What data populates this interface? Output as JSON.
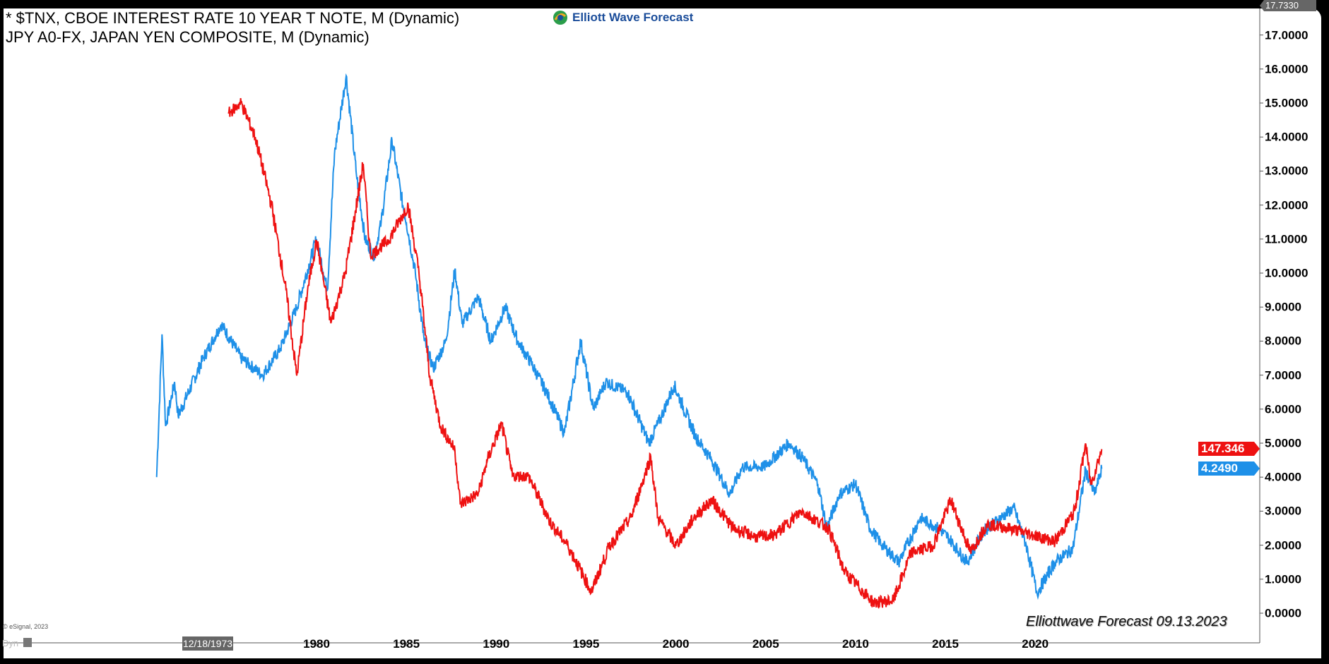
{
  "header": {
    "line1": "* $TNX, CBOE INTEREST RATE 10 YEAR T NOTE, M (Dynamic)",
    "line2": "JPY A0-FX, JAPAN YEN COMPOSITE, M (Dynamic)",
    "logo_text": "Elliott Wave Forecast"
  },
  "watermark": "Elliottwave Forecast  09.13.2023",
  "copyright": "© eSignal, 2023",
  "footer": {
    "dyn_label": "Dyn",
    "cursor_date": "12/18/1973"
  },
  "price_axis": {
    "top_value": "17.7330"
  },
  "chart_data": {
    "type": "line",
    "title": "",
    "xlabel": "",
    "ylabel": "",
    "xlim": [
      1965,
      2040
    ],
    "ylim": [
      -0.9,
      17.8
    ],
    "grid": false,
    "x_ticks": [
      "1980",
      "1985",
      "1990",
      "1995",
      "2000",
      "2005",
      "2010",
      "2015",
      "2020"
    ],
    "y_ticks": [
      "0.0000",
      "1.0000",
      "2.0000",
      "3.0000",
      "4.0000",
      "5.0000",
      "6.0000",
      "7.0000",
      "8.0000",
      "9.0000",
      "10.0000",
      "11.0000",
      "12.0000",
      "13.0000",
      "14.0000",
      "15.0000",
      "16.0000",
      "17.0000"
    ],
    "series": [
      {
        "name": "$TNX",
        "color": "#1e90e8",
        "last_label": "4.2490",
        "x": [
          1971.1,
          1971.4,
          1971.6,
          1972.1,
          1972.3,
          1973.7,
          1974.7,
          1975.8,
          1977.0,
          1978.0,
          1978.9,
          1980.0,
          1980.6,
          1981.0,
          1981.65,
          1982.2,
          1982.7,
          1983.2,
          1983.6,
          1984.2,
          1984.8,
          1985.0,
          1985.5,
          1986.0,
          1986.5,
          1987.2,
          1987.7,
          1988.1,
          1989.0,
          1989.7,
          1990.5,
          1991.2,
          1991.9,
          1992.8,
          1993.8,
          1994.7,
          1995.4,
          1996.1,
          1997.3,
          1998.5,
          1999.2,
          1999.9,
          2001.1,
          2002.0,
          2003.0,
          2003.7,
          2004.9,
          2006.3,
          2007.0,
          2007.9,
          2008.4,
          2009.1,
          2010.0,
          2010.8,
          2011.5,
          2012.4,
          2013.6,
          2014.6,
          2015.2,
          2016.2,
          2017.1,
          2018.8,
          2019.5,
          2020.1,
          2021.1,
          2022.1,
          2022.8,
          2023.3,
          2023.7
        ],
        "y": [
          4.0,
          8.2,
          5.5,
          6.8,
          5.8,
          7.5,
          8.5,
          7.5,
          7.0,
          7.8,
          9.0,
          11.0,
          9.5,
          13.5,
          15.8,
          13.0,
          11.0,
          10.5,
          11.5,
          13.9,
          12.0,
          11.5,
          10.0,
          8.0,
          7.2,
          8.0,
          10.1,
          8.5,
          9.3,
          8.0,
          9.0,
          8.0,
          7.4,
          6.5,
          5.3,
          8.0,
          6.0,
          6.8,
          6.5,
          5.0,
          5.8,
          6.7,
          5.2,
          4.5,
          3.5,
          4.3,
          4.3,
          5.0,
          4.6,
          3.8,
          2.5,
          3.5,
          3.8,
          2.5,
          2.0,
          1.5,
          2.8,
          2.5,
          2.2,
          1.5,
          2.4,
          3.1,
          2.0,
          0.6,
          1.5,
          1.9,
          4.2,
          3.5,
          4.249
        ]
      },
      {
        "name": "JPY A0-FX",
        "color": "#ee1111",
        "last_label": "147.346",
        "x": [
          1975.1,
          1975.8,
          1976.6,
          1977.5,
          1978.3,
          1978.9,
          1979.5,
          1980.0,
          1980.8,
          1981.6,
          1982.6,
          1983.0,
          1984.0,
          1985.1,
          1985.7,
          1986.3,
          1986.9,
          1987.7,
          1988.0,
          1989.0,
          1989.5,
          1990.3,
          1990.9,
          1991.8,
          1993.0,
          1994.0,
          1995.3,
          1996.3,
          1997.5,
          1998.6,
          1999.0,
          2000.0,
          2001.0,
          2002.0,
          2003.2,
          2004.5,
          2005.5,
          2007.0,
          2008.5,
          2009.4,
          2011.0,
          2012.1,
          2013.1,
          2014.3,
          2015.3,
          2016.4,
          2017.3,
          2018.6,
          2019.9,
          2021.1,
          2022.2,
          2022.8,
          2023.1,
          2023.7
        ],
        "y": [
          301,
          306,
          290,
          259,
          220,
          181,
          220,
          243,
          205,
          228,
          278,
          236,
          243,
          259,
          228,
          181,
          158,
          147,
          122,
          127,
          142,
          159,
          135,
          135,
          114,
          103,
          82,
          103,
          116,
          144,
          116,
          103,
          116,
          124,
          111,
          107,
          108,
          119,
          111,
          91,
          77,
          78,
          100,
          103,
          124,
          100,
          113,
          111,
          108,
          105,
          119,
          150,
          131,
          147.346
        ]
      }
    ]
  }
}
